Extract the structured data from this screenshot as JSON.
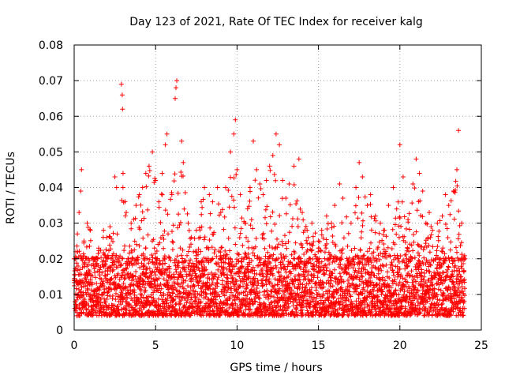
{
  "chart_data": {
    "type": "scatter",
    "title": "Day 123 of 2021, Rate Of TEC Index for receiver kalg",
    "xlabel": "GPS time / hours",
    "ylabel": "ROTI / TECUs",
    "xlim": [
      0,
      25
    ],
    "ylim": [
      0,
      0.08
    ],
    "xticks": [
      0,
      5,
      10,
      15,
      20,
      25
    ],
    "xtick_labels": [
      "0",
      "5",
      "10",
      "15",
      "20",
      "25"
    ],
    "yticks": [
      0,
      0.01,
      0.02,
      0.03,
      0.04,
      0.05,
      0.06,
      0.07,
      0.08
    ],
    "ytick_labels": [
      "0",
      "0.01",
      "0.02",
      "0.03",
      "0.04",
      "0.05",
      "0.06",
      "0.07",
      "0.08"
    ],
    "grid": true,
    "marker": "+",
    "color": "#ff0000",
    "series": [
      {
        "name": "ROTI",
        "points": [
          [
            0.0,
            0.014
          ],
          [
            0.1,
            0.022
          ],
          [
            0.2,
            0.027
          ],
          [
            0.3,
            0.033
          ],
          [
            0.4,
            0.039
          ],
          [
            0.45,
            0.045
          ],
          [
            0.6,
            0.025
          ],
          [
            0.8,
            0.03
          ],
          [
            1.0,
            0.028
          ],
          [
            1.2,
            0.018
          ],
          [
            1.5,
            0.023
          ],
          [
            1.8,
            0.028
          ],
          [
            2.0,
            0.026
          ],
          [
            2.2,
            0.029
          ],
          [
            2.5,
            0.043
          ],
          [
            2.6,
            0.04
          ],
          [
            2.9,
            0.069
          ],
          [
            2.95,
            0.066
          ],
          [
            2.97,
            0.062
          ],
          [
            3.0,
            0.044
          ],
          [
            3.2,
            0.033
          ],
          [
            3.5,
            0.03
          ],
          [
            3.8,
            0.035
          ],
          [
            4.0,
            0.038
          ],
          [
            4.2,
            0.04
          ],
          [
            4.4,
            0.044
          ],
          [
            4.6,
            0.046
          ],
          [
            4.8,
            0.05
          ],
          [
            5.0,
            0.042
          ],
          [
            5.2,
            0.036
          ],
          [
            5.4,
            0.044
          ],
          [
            5.6,
            0.052
          ],
          [
            5.7,
            0.055
          ],
          [
            6.0,
            0.038
          ],
          [
            6.2,
            0.065
          ],
          [
            6.25,
            0.068
          ],
          [
            6.3,
            0.07
          ],
          [
            6.6,
            0.053
          ],
          [
            6.7,
            0.047
          ],
          [
            7.0,
            0.03
          ],
          [
            7.2,
            0.026
          ],
          [
            7.5,
            0.028
          ],
          [
            7.8,
            0.036
          ],
          [
            8.0,
            0.04
          ],
          [
            8.3,
            0.038
          ],
          [
            8.5,
            0.036
          ],
          [
            8.8,
            0.04
          ],
          [
            9.0,
            0.033
          ],
          [
            9.3,
            0.04
          ],
          [
            9.6,
            0.05
          ],
          [
            9.8,
            0.055
          ],
          [
            9.9,
            0.059
          ],
          [
            10.0,
            0.045
          ],
          [
            10.2,
            0.038
          ],
          [
            10.5,
            0.03
          ],
          [
            10.8,
            0.04
          ],
          [
            11.0,
            0.053
          ],
          [
            11.2,
            0.045
          ],
          [
            11.4,
            0.041
          ],
          [
            11.6,
            0.038
          ],
          [
            11.8,
            0.042
          ],
          [
            12.0,
            0.046
          ],
          [
            12.2,
            0.049
          ],
          [
            12.4,
            0.055
          ],
          [
            12.6,
            0.052
          ],
          [
            12.8,
            0.042
          ],
          [
            13.0,
            0.037
          ],
          [
            13.2,
            0.041
          ],
          [
            13.5,
            0.046
          ],
          [
            13.8,
            0.048
          ],
          [
            14.0,
            0.033
          ],
          [
            14.3,
            0.028
          ],
          [
            14.6,
            0.03
          ],
          [
            15.0,
            0.025
          ],
          [
            15.2,
            0.028
          ],
          [
            15.5,
            0.032
          ],
          [
            15.8,
            0.03
          ],
          [
            16.0,
            0.035
          ],
          [
            16.3,
            0.041
          ],
          [
            16.5,
            0.037
          ],
          [
            17.0,
            0.03
          ],
          [
            17.3,
            0.04
          ],
          [
            17.5,
            0.047
          ],
          [
            17.7,
            0.043
          ],
          [
            18.0,
            0.035
          ],
          [
            18.2,
            0.038
          ],
          [
            18.5,
            0.032
          ],
          [
            18.8,
            0.03
          ],
          [
            19.0,
            0.028
          ],
          [
            19.3,
            0.035
          ],
          [
            19.6,
            0.04
          ],
          [
            19.8,
            0.034
          ],
          [
            20.0,
            0.052
          ],
          [
            20.2,
            0.043
          ],
          [
            20.5,
            0.031
          ],
          [
            20.8,
            0.041
          ],
          [
            21.0,
            0.048
          ],
          [
            21.2,
            0.044
          ],
          [
            21.4,
            0.039
          ],
          [
            21.6,
            0.03
          ],
          [
            21.8,
            0.033
          ],
          [
            22.0,
            0.028
          ],
          [
            22.3,
            0.03
          ],
          [
            22.6,
            0.032
          ],
          [
            22.8,
            0.038
          ],
          [
            23.0,
            0.035
          ],
          [
            23.3,
            0.039
          ],
          [
            23.5,
            0.045
          ],
          [
            23.6,
            0.056
          ],
          [
            23.8,
            0.03
          ],
          [
            24.0,
            0.02
          ]
        ],
        "baseline_band": [
          0.004,
          0.02
        ]
      }
    ]
  }
}
